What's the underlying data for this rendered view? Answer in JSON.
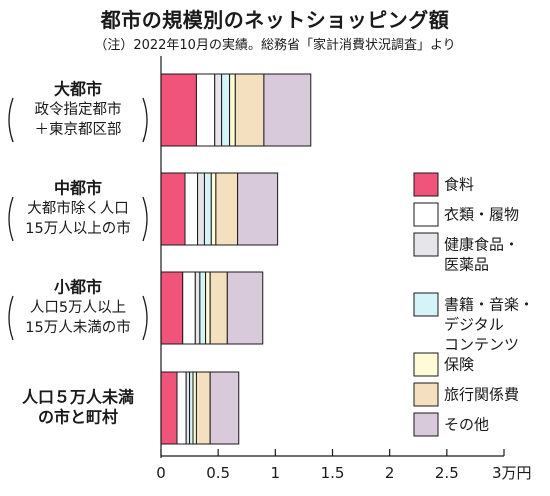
{
  "title": "都市の規模別のネットショッピング額",
  "subtitle": "（注）2022年10月の実績。総務省「家計消費状況調査」より",
  "chart_data": {
    "type": "bar",
    "orientation": "horizontal",
    "stacked": true,
    "categories": [
      {
        "main": "大都市",
        "sub": [
          "政令指定都市",
          "＋東京都区部"
        ]
      },
      {
        "main": "中都市",
        "sub": [
          "大都市除く人口",
          "15万人以上の市"
        ]
      },
      {
        "main": "小都市",
        "sub": [
          "人口5万人以上",
          "15万人未満の市"
        ]
      },
      {
        "main": "人口５万人未満",
        "sub": [
          "の市と町村"
        ]
      }
    ],
    "series": [
      {
        "name": "食料",
        "color": "#f0547a",
        "values": [
          0.31,
          0.21,
          0.19,
          0.14
        ]
      },
      {
        "name": "衣類・履物",
        "color": "#ffffff",
        "values": [
          0.16,
          0.11,
          0.11,
          0.08
        ]
      },
      {
        "name": "健康食品・医薬品",
        "color": "#e6e6ea",
        "values": [
          0.06,
          0.06,
          0.04,
          0.03
        ]
      },
      {
        "name": "書籍・音楽・デジタルコンテンツ",
        "color": "#d4f4f8",
        "values": [
          0.07,
          0.06,
          0.05,
          0.03
        ]
      },
      {
        "name": "保険",
        "color": "#fffbd6",
        "values": [
          0.05,
          0.04,
          0.04,
          0.03
        ]
      },
      {
        "name": "旅行関係費",
        "color": "#f4dfbf",
        "values": [
          0.25,
          0.19,
          0.15,
          0.12
        ]
      },
      {
        "name": "その他",
        "color": "#d9cadb",
        "values": [
          0.41,
          0.35,
          0.31,
          0.25
        ]
      }
    ],
    "legend_labels": [
      [
        "食料"
      ],
      [
        "衣類・履物"
      ],
      [
        "健康食品・",
        "医薬品"
      ],
      [
        "書籍・音楽・",
        "デジタル",
        "コンテンツ"
      ],
      [
        "保険"
      ],
      [
        "旅行関係費"
      ],
      [
        "その他"
      ]
    ],
    "xlim": [
      0,
      3
    ],
    "xticks": [
      0,
      0.5,
      1,
      1.5,
      2,
      2.5,
      3
    ],
    "xtick_labels": [
      "0",
      "0.5",
      "1",
      "1.5",
      "2",
      "2.5",
      "3万円"
    ],
    "legend_position": "right",
    "grid": false
  }
}
